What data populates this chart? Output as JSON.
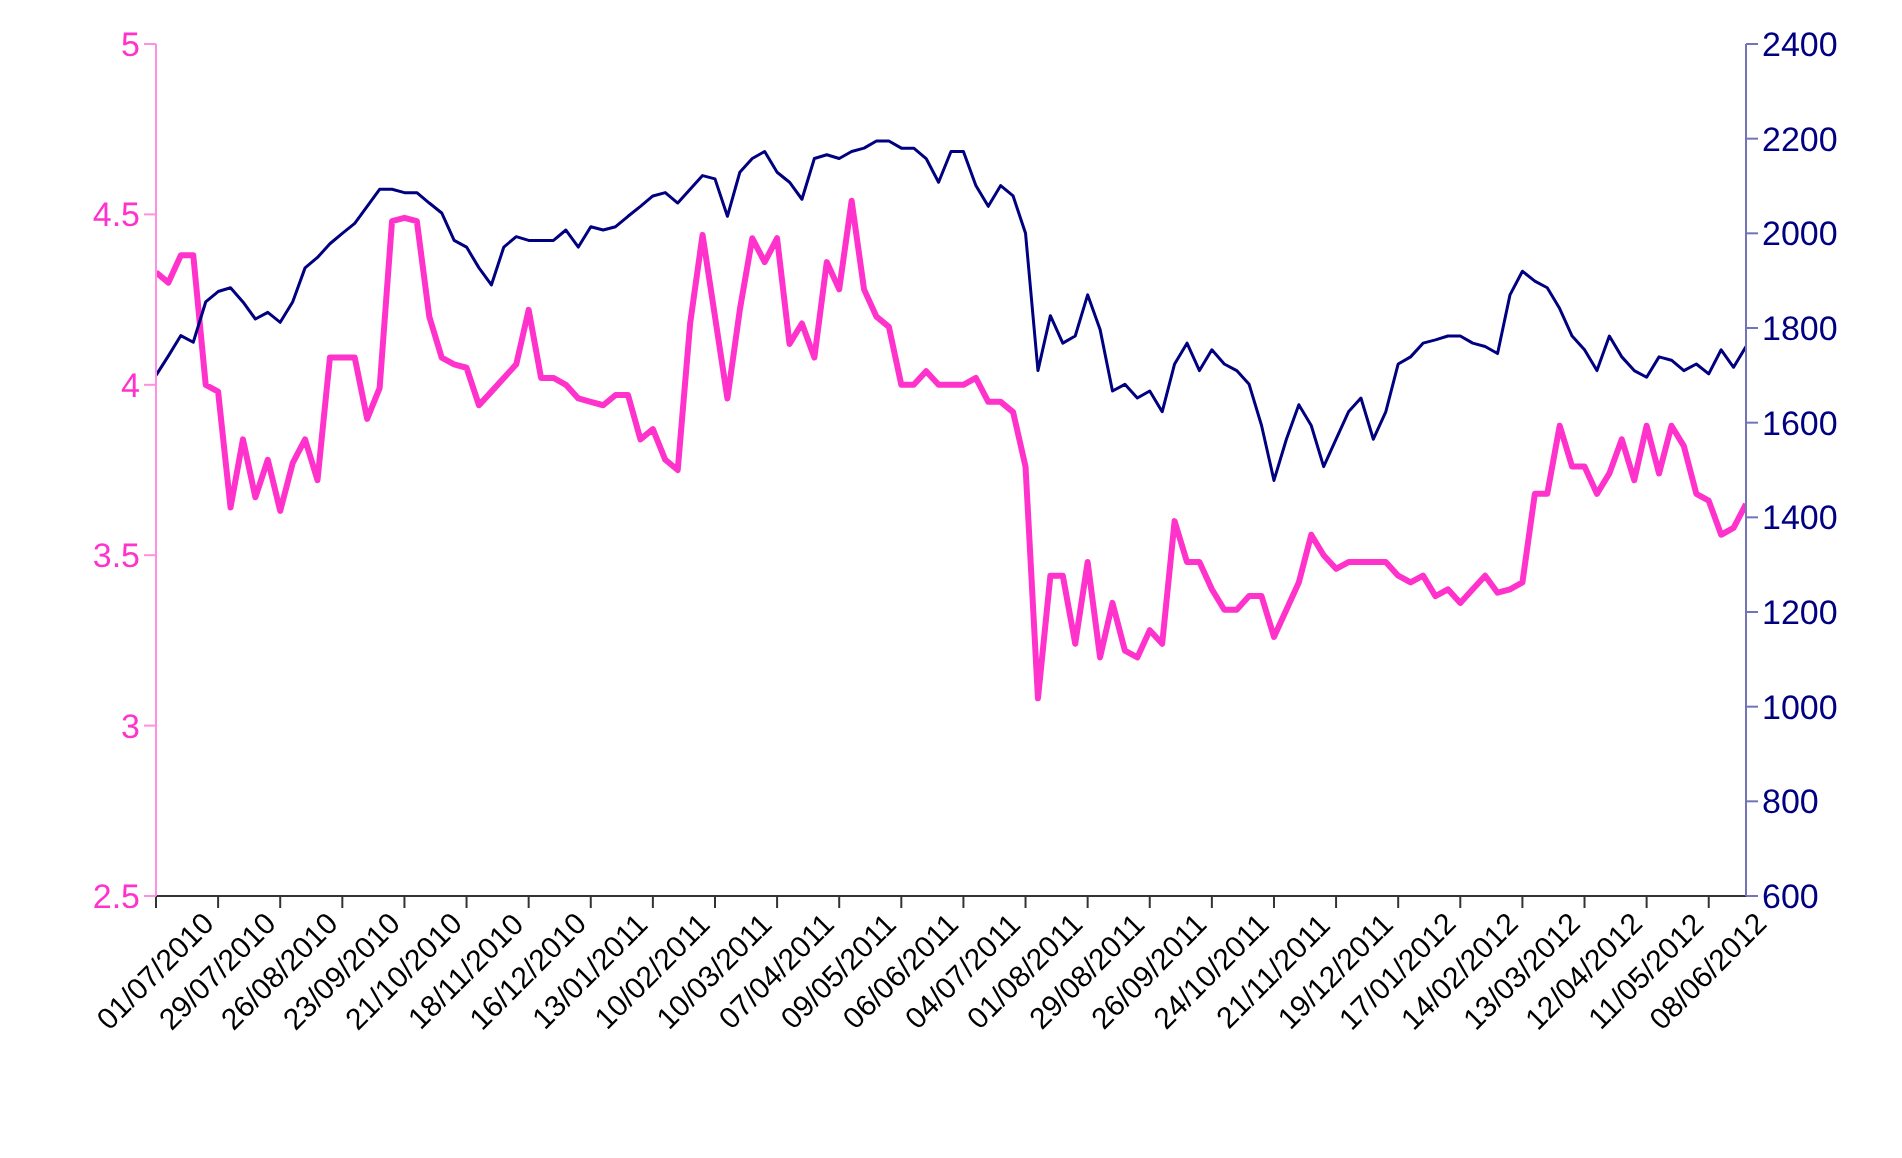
{
  "chart_data": {
    "type": "line",
    "categories": [
      "01/07/2010",
      null,
      null,
      null,
      null,
      "29/07/2010",
      null,
      null,
      null,
      null,
      "26/08/2010",
      null,
      null,
      null,
      null,
      "23/09/2010",
      null,
      null,
      null,
      null,
      "21/10/2010",
      null,
      null,
      null,
      null,
      "18/11/2010",
      null,
      null,
      null,
      null,
      "16/12/2010",
      null,
      null,
      null,
      null,
      "13/01/2011",
      null,
      null,
      null,
      null,
      "10/02/2011",
      null,
      null,
      null,
      null,
      "10/03/2011",
      null,
      null,
      null,
      null,
      "07/04/2011",
      null,
      null,
      null,
      null,
      "09/05/2011",
      null,
      null,
      null,
      null,
      "06/06/2011",
      null,
      null,
      null,
      null,
      "04/07/2011",
      null,
      null,
      null,
      null,
      "01/08/2011",
      null,
      null,
      null,
      null,
      "29/08/2011",
      null,
      null,
      null,
      null,
      "26/09/2011",
      null,
      null,
      null,
      null,
      "24/10/2011",
      null,
      null,
      null,
      null,
      "21/11/2011",
      null,
      null,
      null,
      null,
      "19/12/2011",
      null,
      null,
      null,
      null,
      "17/01/2012",
      null,
      null,
      null,
      null,
      "14/02/2012",
      null,
      null,
      null,
      null,
      "13/03/2012",
      null,
      null,
      null,
      null,
      "12/04/2012",
      null,
      null,
      null,
      null,
      "11/05/2012",
      null,
      null,
      null,
      null,
      "08/06/2012",
      null,
      null,
      null
    ],
    "series": [
      {
        "color": "#ff33cc",
        "axis": "y",
        "values": [
          4.33,
          4.3,
          4.38,
          4.38,
          4.0,
          3.98,
          3.64,
          3.84,
          3.67,
          3.78,
          3.63,
          3.77,
          3.84,
          3.72,
          4.08,
          4.08,
          4.08,
          3.9,
          3.99,
          4.48,
          4.49,
          4.48,
          4.2,
          4.08,
          4.06,
          4.05,
          3.94,
          3.98,
          4.02,
          4.06,
          4.22,
          4.02,
          4.02,
          4.0,
          3.96,
          3.95,
          3.94,
          3.97,
          3.97,
          3.84,
          3.87,
          3.78,
          3.75,
          4.18,
          4.44,
          4.2,
          3.96,
          4.22,
          4.43,
          4.36,
          4.43,
          4.12,
          4.18,
          4.08,
          4.36,
          4.28,
          4.54,
          4.28,
          4.2,
          4.17,
          4.0,
          4.0,
          4.04,
          4.0,
          4.0,
          4.0,
          4.02,
          3.95,
          3.95,
          3.92,
          3.76,
          3.08,
          3.44,
          3.44,
          3.24,
          3.48,
          3.2,
          3.36,
          3.22,
          3.2,
          3.28,
          3.24,
          3.6,
          3.48,
          3.48,
          3.4,
          3.34,
          3.34,
          3.38,
          3.38,
          3.26,
          3.34,
          3.42,
          3.56,
          3.5,
          3.46,
          3.48,
          3.48,
          3.48,
          3.48,
          3.44,
          3.42,
          3.44,
          3.38,
          3.4,
          3.36,
          3.4,
          3.44,
          3.39,
          3.4,
          3.42,
          3.68,
          3.68,
          3.88,
          3.76,
          3.76,
          3.68,
          3.74,
          3.84,
          3.72,
          3.88,
          3.74,
          3.88,
          3.82,
          3.68,
          3.66,
          3.56,
          3.58,
          3.65
        ]
      },
      {
        "color": "#000080",
        "axis": "y2",
        "values": [
          1700,
          1741,
          1784,
          1770,
          1855,
          1877,
          1885,
          1855,
          1819,
          1833,
          1812,
          1855,
          1927,
          1949,
          1978,
          2000,
          2021,
          2057,
          2093,
          2093,
          2086,
          2086,
          2064,
          2043,
          1985,
          1971,
          1927,
          1891,
          1971,
          1993,
          1985,
          1985,
          1985,
          2007,
          1971,
          2014,
          2007,
          2014,
          2036,
          2057,
          2079,
          2086,
          2064,
          2093,
          2122,
          2115,
          2036,
          2129,
          2158,
          2173,
          2129,
          2108,
          2072,
          2158,
          2166,
          2158,
          2173,
          2180,
          2195,
          2195,
          2180,
          2180,
          2158,
          2108,
          2173,
          2173,
          2101,
          2057,
          2101,
          2079,
          2000,
          1710,
          1826,
          1768,
          1783,
          1870,
          1797,
          1667,
          1681,
          1652,
          1667,
          1623,
          1724,
          1768,
          1710,
          1754,
          1724,
          1710,
          1681,
          1594,
          1478,
          1565,
          1638,
          1594,
          1507,
          1565,
          1623,
          1652,
          1565,
          1623,
          1724,
          1739,
          1768,
          1775,
          1783,
          1783,
          1768,
          1761,
          1746,
          1870,
          1920,
          1899,
          1885,
          1841,
          1783,
          1754,
          1710,
          1783,
          1739,
          1710,
          1696,
          1739,
          1732,
          1710,
          1724,
          1703,
          1754,
          1717,
          1761
        ]
      }
    ],
    "ylim": [
      2.5,
      5
    ],
    "yticks": [
      2.5,
      3,
      3.5,
      4,
      4.5,
      5
    ],
    "y2lim": [
      600,
      2400
    ],
    "y2ticks": [
      600,
      800,
      1000,
      1200,
      1400,
      1600,
      1800,
      2000,
      2200,
      2400
    ],
    "grid": false,
    "legend": false,
    "marker": "none",
    "line_style": "solid"
  }
}
